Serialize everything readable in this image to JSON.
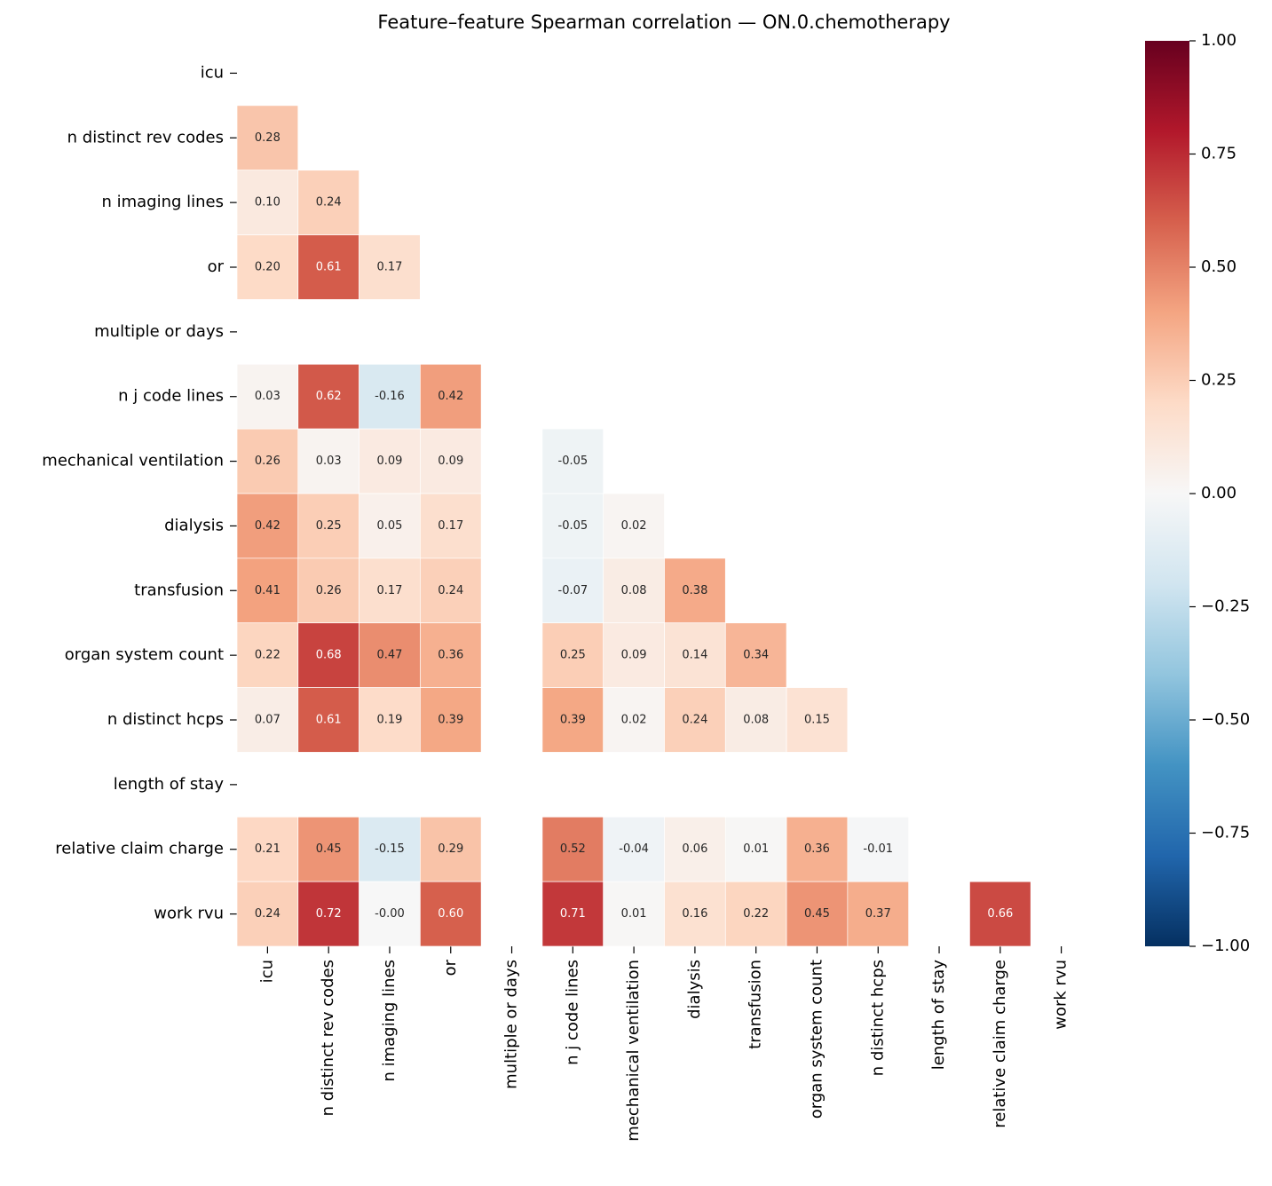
{
  "chart_data": {
    "type": "heatmap",
    "title": "Feature–feature Spearman correlation — ON.0.chemotherapy",
    "categories": [
      "icu",
      "n distinct rev codes",
      "n imaging lines",
      "or",
      "multiple or days",
      "n j code lines",
      "mechanical ventilation",
      "dialysis",
      "transfusion",
      "organ system count",
      "n distinct hcps",
      "length of stay",
      "relative claim charge",
      "work rvu"
    ],
    "values": [
      [
        null,
        null,
        null,
        null,
        null,
        null,
        null,
        null,
        null,
        null,
        null,
        null,
        null,
        null
      ],
      [
        0.28,
        null,
        null,
        null,
        null,
        null,
        null,
        null,
        null,
        null,
        null,
        null,
        null,
        null
      ],
      [
        0.1,
        0.24,
        null,
        null,
        null,
        null,
        null,
        null,
        null,
        null,
        null,
        null,
        null,
        null
      ],
      [
        0.2,
        0.61,
        0.17,
        null,
        null,
        null,
        null,
        null,
        null,
        null,
        null,
        null,
        null,
        null
      ],
      [
        null,
        null,
        null,
        null,
        null,
        null,
        null,
        null,
        null,
        null,
        null,
        null,
        null,
        null
      ],
      [
        0.03,
        0.62,
        -0.16,
        0.42,
        null,
        null,
        null,
        null,
        null,
        null,
        null,
        null,
        null,
        null
      ],
      [
        0.26,
        0.03,
        0.09,
        0.09,
        null,
        -0.05,
        null,
        null,
        null,
        null,
        null,
        null,
        null,
        null
      ],
      [
        0.42,
        0.25,
        0.05,
        0.17,
        null,
        -0.05,
        0.02,
        null,
        null,
        null,
        null,
        null,
        null,
        null
      ],
      [
        0.41,
        0.26,
        0.17,
        0.24,
        null,
        -0.07,
        0.08,
        0.38,
        null,
        null,
        null,
        null,
        null,
        null
      ],
      [
        0.22,
        0.68,
        0.47,
        0.36,
        null,
        0.25,
        0.09,
        0.14,
        0.34,
        null,
        null,
        null,
        null,
        null
      ],
      [
        0.07,
        0.61,
        0.19,
        0.39,
        null,
        0.39,
        0.02,
        0.24,
        0.08,
        0.15,
        null,
        null,
        null,
        null
      ],
      [
        null,
        null,
        null,
        null,
        null,
        null,
        null,
        null,
        null,
        null,
        null,
        null,
        null,
        null
      ],
      [
        0.21,
        0.45,
        -0.15,
        0.29,
        null,
        0.52,
        -0.04,
        0.06,
        0.01,
        0.36,
        -0.01,
        null,
        null,
        null
      ],
      [
        0.24,
        0.72,
        0,
        0.6,
        null,
        0.71,
        0.01,
        0.16,
        0.22,
        0.45,
        0.37,
        null,
        0.66,
        null
      ]
    ],
    "value_labels": [
      [
        null,
        null,
        null,
        null,
        null,
        null,
        null,
        null,
        null,
        null,
        null,
        null,
        null,
        null
      ],
      [
        "0.28",
        null,
        null,
        null,
        null,
        null,
        null,
        null,
        null,
        null,
        null,
        null,
        null,
        null
      ],
      [
        "0.10",
        "0.24",
        null,
        null,
        null,
        null,
        null,
        null,
        null,
        null,
        null,
        null,
        null,
        null
      ],
      [
        "0.20",
        "0.61",
        "0.17",
        null,
        null,
        null,
        null,
        null,
        null,
        null,
        null,
        null,
        null,
        null
      ],
      [
        null,
        null,
        null,
        null,
        null,
        null,
        null,
        null,
        null,
        null,
        null,
        null,
        null,
        null
      ],
      [
        "0.03",
        "0.62",
        "-0.16",
        "0.42",
        null,
        null,
        null,
        null,
        null,
        null,
        null,
        null,
        null,
        null
      ],
      [
        "0.26",
        "0.03",
        "0.09",
        "0.09",
        null,
        "-0.05",
        null,
        null,
        null,
        null,
        null,
        null,
        null,
        null
      ],
      [
        "0.42",
        "0.25",
        "0.05",
        "0.17",
        null,
        "-0.05",
        "0.02",
        null,
        null,
        null,
        null,
        null,
        null,
        null
      ],
      [
        "0.41",
        "0.26",
        "0.17",
        "0.24",
        null,
        "-0.07",
        "0.08",
        "0.38",
        null,
        null,
        null,
        null,
        null,
        null
      ],
      [
        "0.22",
        "0.68",
        "0.47",
        "0.36",
        null,
        "0.25",
        "0.09",
        "0.14",
        "0.34",
        null,
        null,
        null,
        null,
        null
      ],
      [
        "0.07",
        "0.61",
        "0.19",
        "0.39",
        null,
        "0.39",
        "0.02",
        "0.24",
        "0.08",
        "0.15",
        null,
        null,
        null,
        null
      ],
      [
        null,
        null,
        null,
        null,
        null,
        null,
        null,
        null,
        null,
        null,
        null,
        null,
        null,
        null
      ],
      [
        "0.21",
        "0.45",
        "-0.15",
        "0.29",
        null,
        "0.52",
        "-0.04",
        "0.06",
        "0.01",
        "0.36",
        "-0.01",
        null,
        null,
        null
      ],
      [
        "0.24",
        "0.72",
        "-0.00",
        "0.60",
        null,
        "0.71",
        "0.01",
        "0.16",
        "0.22",
        "0.45",
        "0.37",
        null,
        "0.66",
        null
      ]
    ],
    "colors": [
      "#053061",
      "#2166ac",
      "#4393c3",
      "#92c5de",
      "#d1e5f0",
      "#f7f7f7",
      "#fddbc7",
      "#f4a582",
      "#d6604d",
      "#b2182b",
      "#67001f"
    ],
    "zlim": [
      -1,
      1
    ],
    "zticks": [
      {
        "value": -1,
        "label": "−1.00"
      },
      {
        "value": -0.75,
        "label": "−0.75"
      },
      {
        "value": -0.5,
        "label": "−0.50"
      },
      {
        "value": -0.25,
        "label": "−0.25"
      },
      {
        "value": 0,
        "label": "0.00"
      },
      {
        "value": 0.25,
        "label": "0.25"
      },
      {
        "value": 0.5,
        "label": "0.50"
      },
      {
        "value": 0.75,
        "label": "0.75"
      },
      {
        "value": 1,
        "label": "1.00"
      }
    ]
  }
}
